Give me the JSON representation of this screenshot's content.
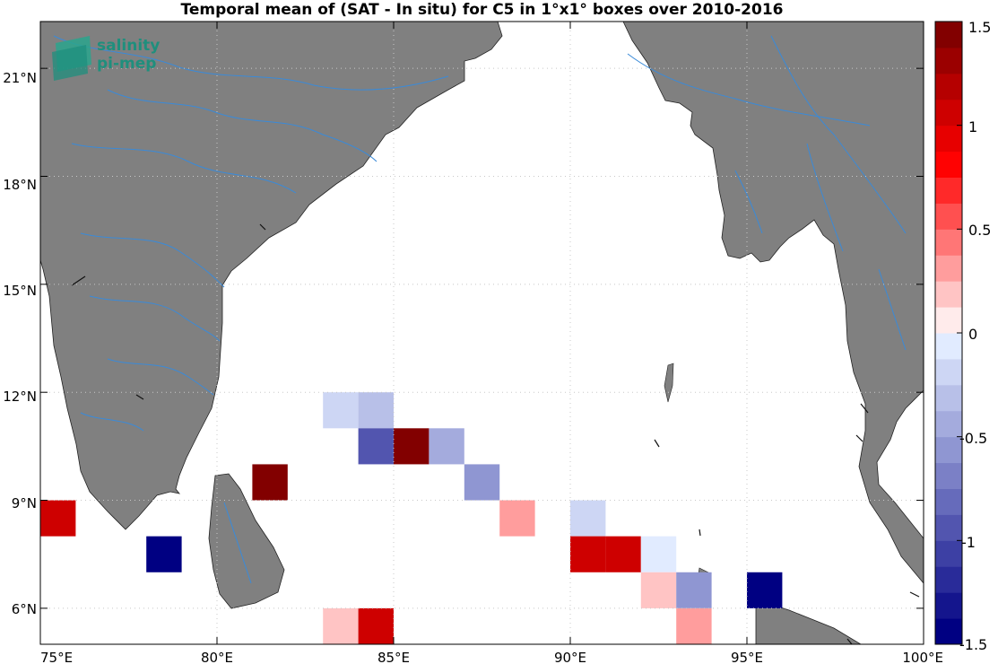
{
  "title": "Temporal mean of (SAT - In situ) for C5 in 1°x1° boxes over 2010-2016",
  "logo": {
    "line1": "salinity",
    "line2": "pi-mep"
  },
  "map": {
    "lon_range": [
      75,
      100
    ],
    "lat_range": [
      5,
      22.3
    ],
    "x_ticks": [
      "75°E",
      "80°E",
      "85°E",
      "90°E",
      "95°E",
      "100°E"
    ],
    "y_ticks": [
      "6°N",
      "9°N",
      "12°N",
      "15°N",
      "18°N",
      "21°N"
    ],
    "land_color": "#808080",
    "river_color": "#3a8ad8",
    "grid": "dotted"
  },
  "colorbar": {
    "range": [
      -1.5,
      1.5
    ],
    "tick_labels": [
      "1.5",
      "1",
      "0.5",
      "0",
      "-0.5",
      "-1",
      "-1.5"
    ]
  },
  "chart_data": {
    "type": "heatmap",
    "title": "Temporal mean of (SAT - In situ) for C5 in 1°x1° boxes over 2010-2016",
    "cell_size_deg": 1,
    "vrange": [
      -1.5,
      1.5
    ],
    "cells": [
      {
        "lon": 75,
        "lat": 8,
        "value": 1.1
      },
      {
        "lon": 78,
        "lat": 7,
        "value": -1.5
      },
      {
        "lon": 81,
        "lat": 9,
        "value": 1.5
      },
      {
        "lon": 83,
        "lat": 11,
        "value": -0.15
      },
      {
        "lon": 84,
        "lat": 11,
        "value": -0.3
      },
      {
        "lon": 84,
        "lat": 10,
        "value": -0.95
      },
      {
        "lon": 85,
        "lat": 10,
        "value": 1.5
      },
      {
        "lon": 86,
        "lat": 10,
        "value": -0.4
      },
      {
        "lon": 87,
        "lat": 9,
        "value": -0.6
      },
      {
        "lon": 88,
        "lat": 8,
        "value": 0.3
      },
      {
        "lon": 90,
        "lat": 8,
        "value": -0.25
      },
      {
        "lon": 90,
        "lat": 7,
        "value": 1.1
      },
      {
        "lon": 91,
        "lat": 7,
        "value": 1.0
      },
      {
        "lon": 92,
        "lat": 7,
        "value": -0.1
      },
      {
        "lon": 92,
        "lat": 6,
        "value": 0.15
      },
      {
        "lon": 93,
        "lat": 6,
        "value": -0.6
      },
      {
        "lon": 95,
        "lat": 6,
        "value": -1.5
      },
      {
        "lon": 83,
        "lat": 5,
        "value": 0.15
      },
      {
        "lon": 84,
        "lat": 5,
        "value": 1.1
      },
      {
        "lon": 93,
        "lat": 5,
        "value": 0.3
      }
    ]
  }
}
